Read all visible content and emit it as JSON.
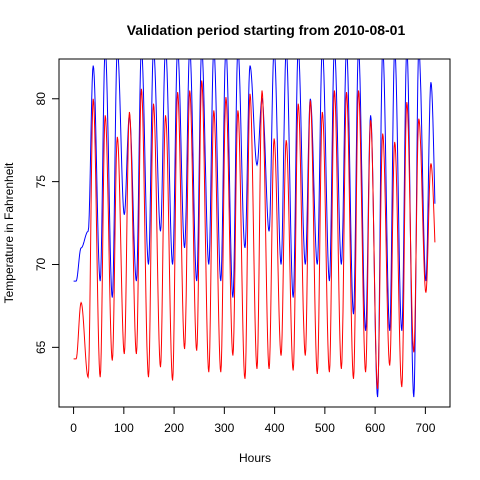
{
  "chart_data": {
    "type": "line",
    "title": "Validation period starting from 2010-08-01",
    "xlabel": "Hours",
    "ylabel": "Temperature in Fahrenheit",
    "xlim": [
      -29,
      749
    ],
    "ylim": [
      61.4,
      82.4
    ],
    "xticks": [
      0,
      100,
      200,
      300,
      400,
      500,
      600,
      700
    ],
    "yticks": [
      65,
      70,
      75,
      80
    ],
    "grid": false,
    "legend": "none",
    "x_step_hours": 1,
    "series": [
      {
        "color": "#0000ff",
        "daily_max": [
          71,
          82,
          83,
          83,
          79,
          83,
          83,
          83,
          83,
          83,
          83,
          83,
          83,
          83,
          82,
          80,
          83,
          83,
          83,
          80,
          83,
          83,
          83,
          83,
          79,
          83,
          83,
          83,
          83,
          81
        ],
        "daily_min": [
          69,
          72,
          69,
          68,
          73,
          69,
          70,
          72,
          70,
          71,
          69,
          70,
          69,
          68,
          71,
          76,
          72,
          70,
          68,
          70,
          70,
          69,
          70,
          67,
          66,
          62,
          66,
          66,
          62,
          69
        ]
      },
      {
        "color": "#ff0000",
        "daily_max": [
          67.7,
          80.0,
          79.0,
          77.7,
          79.2,
          80.6,
          79.7,
          79.0,
          80.4,
          80.5,
          81.1,
          79.3,
          80.1,
          79.3,
          80.3,
          80.5,
          77.6,
          77.5,
          79.7,
          79.9,
          79.2,
          80.5,
          80.4,
          80.5,
          78.7,
          77.9,
          77.4,
          79.8,
          78.8,
          76.1
        ],
        "daily_min": [
          64.3,
          63.2,
          63.2,
          64.2,
          64.6,
          64.6,
          63.2,
          63.8,
          63.0,
          64.9,
          64.8,
          63.5,
          63.5,
          64.5,
          63.1,
          63.7,
          63.7,
          64.5,
          63.6,
          64.5,
          63.4,
          63.5,
          63.7,
          63.1,
          63.5,
          62.5,
          63.9,
          62.6,
          64.7,
          68.3
        ]
      }
    ]
  }
}
